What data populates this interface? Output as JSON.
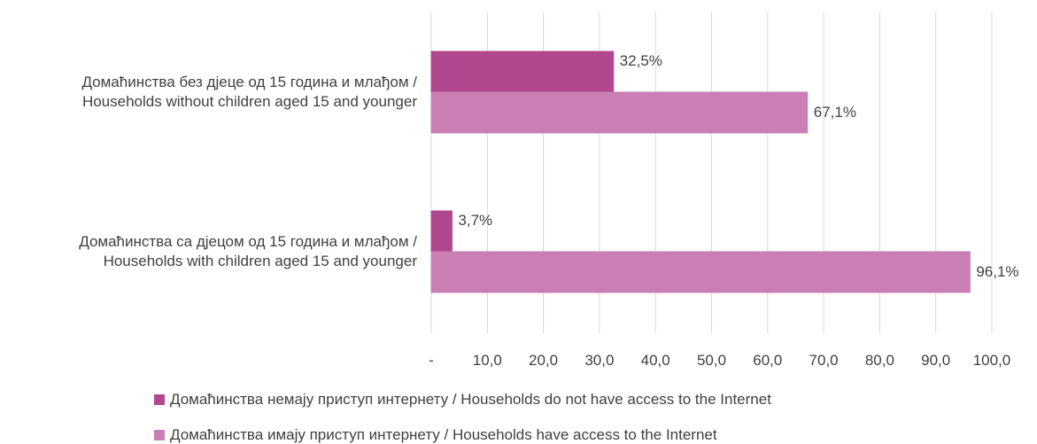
{
  "chart_data": {
    "type": "bar",
    "orientation": "horizontal",
    "categories": [
      "Домаћинства без дјеце од 15 година и млађом / Households without children aged 15 and younger",
      "Домаћинства са дјецом од 15 година и млађом / Households with children aged 15 and younger"
    ],
    "category_lines": [
      [
        "Домаћинства без дјеце од 15 година  и млађом /",
        "Households  without children aged 15 and younger"
      ],
      [
        "Домаћинства са дјецом од 15 година  и млађом /",
        "Households  with children aged 15 and younger"
      ]
    ],
    "series": [
      {
        "name": "Домаћинства немају приступ интернету / Households do not have access to the Internet",
        "color": "#b0478f",
        "values": [
          32.5,
          3.7
        ],
        "data_labels": [
          "32,5%",
          "3,7%"
        ]
      },
      {
        "name": "Домаћинства имају приступ интернету / Households have access to the Internet",
        "color": "#c97eb4",
        "values": [
          67.1,
          96.1
        ],
        "data_labels": [
          "67,1%",
          "96,1%"
        ]
      }
    ],
    "xlim": [
      0,
      100
    ],
    "x_ticks": [
      "-",
      "10,0",
      "20,0",
      "30,0",
      "40,0",
      "50,0",
      "60,0",
      "70,0",
      "80,0",
      "90,0",
      "100,0"
    ],
    "grid": true,
    "legend_position": "bottom"
  }
}
